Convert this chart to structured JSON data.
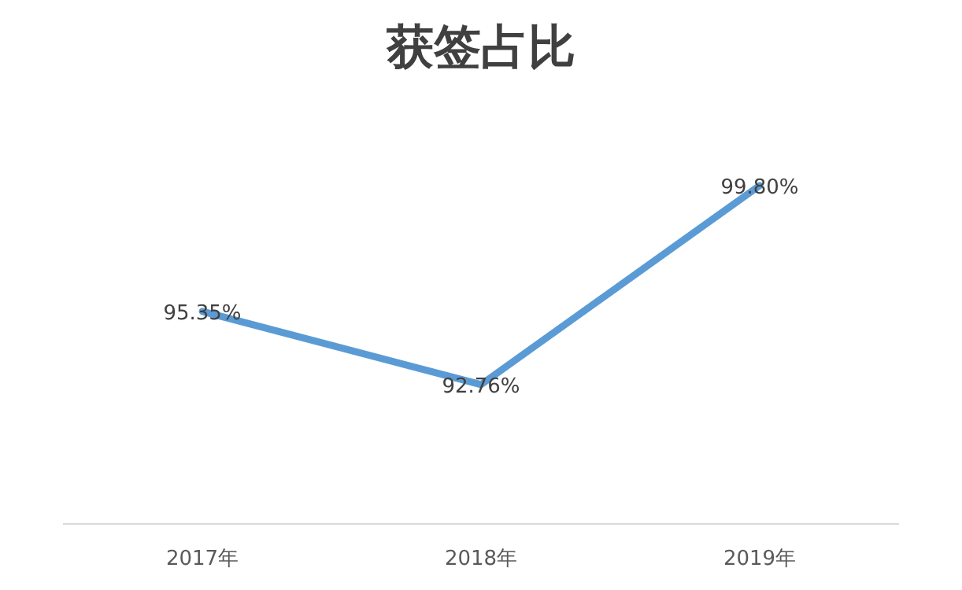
{
  "chart_data": {
    "type": "line",
    "title": "获签占比",
    "categories": [
      "2017年",
      "2018年",
      "2019年"
    ],
    "color": "#5b9bd5",
    "values": [
      95.35,
      92.76,
      99.8
    ],
    "value_labels": [
      "95.35%",
      "92.76%",
      "99.80%"
    ]
  }
}
